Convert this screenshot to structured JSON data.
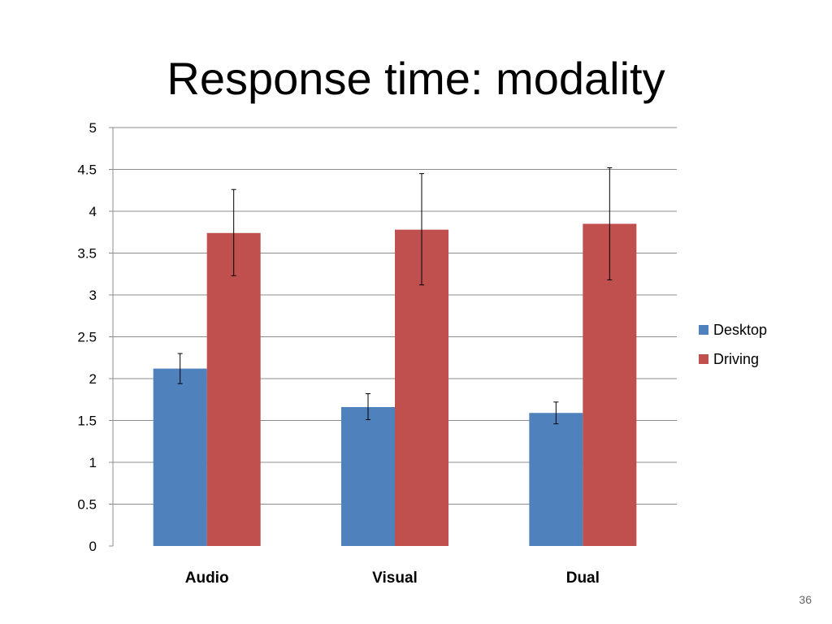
{
  "slide": {
    "title": "Response time: modality",
    "number": "36"
  },
  "chart_data": {
    "type": "bar",
    "title": "",
    "xlabel": "",
    "ylabel": "",
    "categories": [
      "Audio",
      "Visual",
      "Dual"
    ],
    "ylim": [
      0,
      5
    ],
    "yticks": [
      0,
      0.5,
      1,
      1.5,
      2,
      2.5,
      3,
      3.5,
      4,
      4.5,
      5
    ],
    "ytick_labels": [
      "0",
      "0.5",
      "1",
      "1.5",
      "2",
      "2.5",
      "3",
      "3.5",
      "4",
      "4.5",
      "5"
    ],
    "grid": true,
    "legend_position": "right",
    "series": [
      {
        "name": "Desktop",
        "color": "#4f81bd",
        "values": [
          2.12,
          1.66,
          1.59
        ],
        "error_low": [
          1.94,
          1.51,
          1.46
        ],
        "error_high": [
          2.3,
          1.82,
          1.72
        ]
      },
      {
        "name": "Driving",
        "color": "#c0504d",
        "values": [
          3.74,
          3.78,
          3.85
        ],
        "error_low": [
          3.23,
          3.12,
          3.18
        ],
        "error_high": [
          4.26,
          4.45,
          4.52
        ]
      }
    ]
  }
}
